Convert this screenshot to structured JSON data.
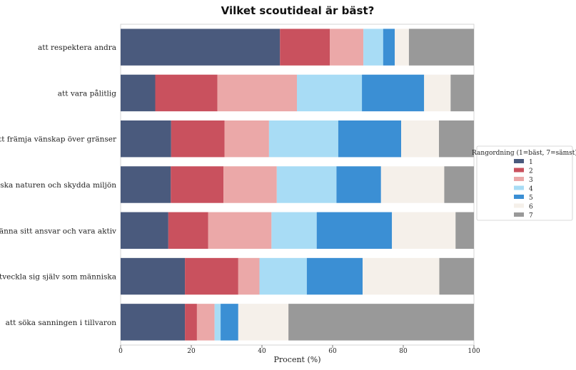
{
  "chart_data": {
    "type": "bar",
    "orientation": "horizontal",
    "stacked": true,
    "title": "Vilket scoutideal är bäst?",
    "xlabel": "Procent (%)",
    "ylabel": "",
    "xlim": [
      0,
      100
    ],
    "xticks": [
      "0",
      "20",
      "40",
      "60",
      "80",
      "100"
    ],
    "categories": [
      "att respektera andra",
      "att vara pålitlig",
      "att främja vänskap över gränser",
      "att älska naturen och skydda miljön",
      "att känna sitt ansvar och vara aktiv",
      "att utveckla sig själv som människa",
      "att söka sanningen i tillvaron"
    ],
    "legend": {
      "title": "Rangordning (1=bäst, 7=sämst)",
      "placement": "right"
    },
    "series": [
      {
        "name": "1",
        "color": "#4a5a7d",
        "values": [
          45.1,
          9.8,
          14.3,
          14.2,
          13.5,
          18.2,
          18.2
        ]
      },
      {
        "name": "2",
        "color": "#c9515e",
        "values": [
          14.1,
          17.6,
          15.1,
          14.9,
          11.3,
          15.1,
          3.4
        ]
      },
      {
        "name": "3",
        "color": "#eba8a8",
        "values": [
          9.5,
          22.5,
          12.6,
          15.1,
          17.9,
          6.0,
          5.0
        ]
      },
      {
        "name": "4",
        "color": "#a8dcf5",
        "values": [
          5.6,
          18.4,
          19.6,
          16.9,
          12.8,
          13.4,
          1.7
        ]
      },
      {
        "name": "5",
        "color": "#3b8fd4",
        "values": [
          3.3,
          17.6,
          17.8,
          12.6,
          21.3,
          15.8,
          5.0
        ]
      },
      {
        "name": "6",
        "color": "#f5f0ea",
        "values": [
          4.0,
          7.5,
          10.7,
          17.9,
          18.0,
          21.7,
          14.2
        ]
      },
      {
        "name": "7",
        "color": "#999999",
        "values": [
          18.4,
          6.6,
          9.9,
          8.4,
          5.2,
          9.8,
          52.5
        ]
      }
    ]
  }
}
